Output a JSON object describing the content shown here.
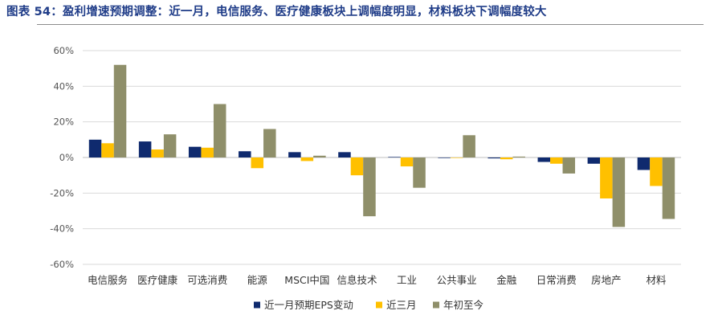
{
  "figure_title": "图表 54：盈利增速预期调整：近一月，电信服务、医疗健康板块上调幅度明显，材料板块下调幅度较大",
  "chart_data": {
    "type": "bar",
    "title": "",
    "categories": [
      "电信服务",
      "医疗健康",
      "可选消费",
      "能源",
      "MSCI中国",
      "信息技术",
      "工业",
      "公共事业",
      "金融",
      "日常消费",
      "房地产",
      "材料"
    ],
    "series": [
      {
        "name": "近一月预期EPS变动",
        "color": "#0f2a6e",
        "values": [
          10,
          9,
          6,
          3.5,
          3,
          3,
          0.3,
          -0.3,
          -0.5,
          -2.5,
          -3.5,
          -7
        ]
      },
      {
        "name": "近三月",
        "color": "#ffc000",
        "values": [
          8,
          4.5,
          5.5,
          -6,
          -2,
          -10,
          -5,
          0,
          -1,
          -3.5,
          -23,
          -16
        ]
      },
      {
        "name": "年初至今",
        "color": "#8f8f6a",
        "values": [
          52,
          13,
          30,
          16,
          1,
          -33,
          -17,
          12.5,
          0.5,
          -9,
          -39,
          -34.5
        ]
      }
    ],
    "y_ticks": [
      "60%",
      "40%",
      "20%",
      "0%",
      "-20%",
      "-40%",
      "-60%"
    ],
    "ylim": [
      -60,
      60
    ],
    "grid": true,
    "legend_position": "bottom"
  }
}
